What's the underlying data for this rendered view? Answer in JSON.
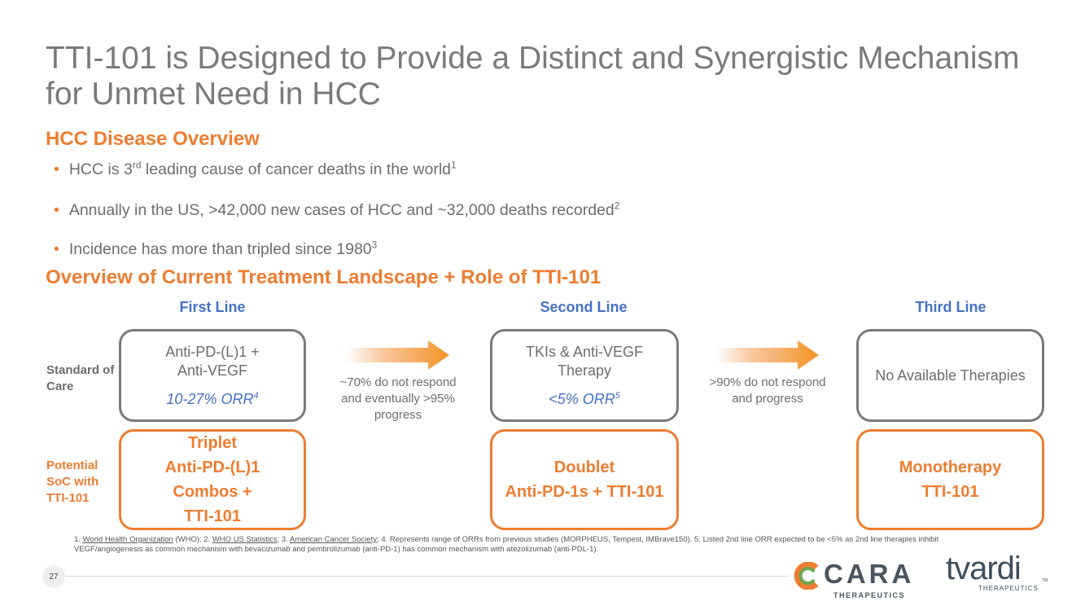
{
  "title": "TTI-101 is Designed to Provide a Distinct and Synergistic Mechanism for Unmet Need in HCC",
  "disease_overview": {
    "heading": "HCC Disease Overview",
    "bullets": [
      {
        "pre": "HCC is 3",
        "sup1": "rd",
        "post": " leading cause of cancer deaths in the world",
        "ref": "1"
      },
      {
        "text": "Annually in the US, >42,000 new cases of HCC and ~32,000 deaths recorded",
        "ref": "2"
      },
      {
        "text": "Incidence has more than tripled since 1980",
        "ref": "3"
      }
    ]
  },
  "landscape": {
    "heading": "Overview of Current Treatment Landscape + Role of TTI-101",
    "columns": [
      "First Line",
      "Second Line",
      "Third Line"
    ],
    "row_labels": {
      "soc": "Standard of Care",
      "potential": "Potential SoC with TTI-101"
    },
    "soc": [
      {
        "lines": [
          "Anti-PD-(L)1 +",
          "Anti-VEGF"
        ],
        "orr": "10-27% ORR",
        "orr_ref": "4"
      },
      {
        "lines": [
          "TKIs & Anti-VEGF",
          "Therapy"
        ],
        "orr": "<5% ORR",
        "orr_ref": "5"
      },
      {
        "lines": [
          "No Available Therapies"
        ]
      }
    ],
    "arrow_notes": [
      "~70% do not respond and eventually >95% progress",
      ">90% do not respond and progress"
    ],
    "potential": [
      {
        "lines": [
          "Triplet",
          "Anti-PD-(L)1",
          "Combos +",
          "TTI-101"
        ]
      },
      {
        "lines": [
          "Doublet",
          "Anti-PD-1s + TTI-101"
        ]
      },
      {
        "lines": [
          "Monotherapy",
          "TTI-101"
        ]
      }
    ]
  },
  "footnote": {
    "n1": "1. ",
    "l1": "World Health Organization",
    "t1": " (WHO); 2. ",
    "l2": "WHO US Statistics",
    "t2": "; 3. ",
    "l3": "American Cancer Society",
    "t3": "; 4. Represents range of ORRs from previous studies (MORPHEUS, Tempest, IMBrave150). 5. Listed 2nd line ORR expected to be <5% as 2nd line therapies inhibit VEGF/angiogenesis as common mechanism with bevacizumab and pembrolizumab (anti-PD-1) has common mechanism with atezolizumab (anti-PDL-1)."
  },
  "page_number": "27",
  "logos": {
    "cara": "CARA",
    "cara_sub": "THERAPEUTICS",
    "tvardi": "tvardi",
    "tvardi_sub": "THERAPEUTICS",
    "tm": "TM"
  },
  "colors": {
    "orange": "#ed7d31",
    "blue": "#4472c4",
    "gray": "#7a7a7a"
  }
}
